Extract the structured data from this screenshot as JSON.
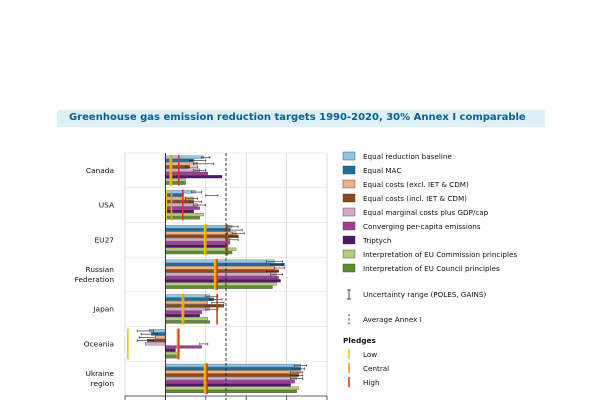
{
  "title": "Greenhouse gas emission reduction targets 1990-2020, 30% Annex I comparable",
  "colors": {
    "title_bg": "#ddeff8",
    "title_text": "#0a5f8f",
    "pledge_low": "#f2c300",
    "pledge_central": "#f29a1f",
    "pledge_high": "#d8371d"
  },
  "chart_data": {
    "type": "bar",
    "orientation": "horizontal",
    "categories": [
      "Canada",
      "USA",
      "EU27",
      "Russian Federation",
      "Japan",
      "Oceania",
      "Ukraine region"
    ],
    "category_labels": [
      [
        "Canada"
      ],
      [
        "USA"
      ],
      [
        "EU27"
      ],
      [
        "Russian",
        "Federation"
      ],
      [
        "Japan"
      ],
      [
        "Oceania"
      ],
      [
        "Ukraine",
        "region"
      ]
    ],
    "xlim": [
      -20,
      80
    ],
    "grid": true,
    "average_annex1": 30,
    "series": [
      {
        "name": "Equal reduction baseline",
        "color": "#8ec6e6",
        "values": [
          19,
          15,
          33,
          54,
          22,
          -8,
          67
        ]
      },
      {
        "name": "Equal MAC",
        "color": "#1b6f9e",
        "values": [
          14,
          9,
          32,
          59,
          24,
          -7,
          67
        ]
      },
      {
        "name": "Equal costs (excl. IET & CDM)",
        "color": "#f0b089",
        "values": [
          16,
          14,
          35,
          54,
          21,
          -5,
          67
        ]
      },
      {
        "name": "Equal costs (incl. IET & CDM)",
        "color": "#8a4b18",
        "values": [
          12,
          14,
          36,
          56,
          29,
          -9,
          66
        ]
      },
      {
        "name": "Equal marginal costs plus GDP/cap",
        "color": "#d4aacc",
        "values": [
          17,
          16,
          32,
          55,
          22,
          -10,
          65
        ]
      },
      {
        "name": "Converging per-capita emissions",
        "color": "#a03e96",
        "values": [
          21,
          17,
          32,
          56,
          18,
          18,
          64
        ]
      },
      {
        "name": "Triptych",
        "color": "#4f1a6b",
        "values": [
          28,
          14,
          31,
          57,
          17,
          5,
          62
        ]
      },
      {
        "name": "Interpretation of EU Commission principles",
        "color": "#b5cc7a",
        "values": [
          10,
          19,
          35,
          55,
          21,
          6,
          66
        ]
      },
      {
        "name": "Interpretation of EU Council principles",
        "color": "#5e8f2e",
        "values": [
          10,
          17,
          33,
          53,
          22,
          6,
          65
        ]
      }
    ],
    "uncertainty_ranges": [
      [
        [
          18,
          22
        ],
        [
          12,
          20
        ],
        [
          14,
          24
        ],
        [
          10,
          16
        ],
        [
          14,
          20
        ]
      ],
      [
        [
          13,
          18
        ],
        [
          20,
          26
        ],
        [
          10,
          16
        ],
        [
          12,
          18
        ],
        [
          14,
          20
        ]
      ],
      [
        [
          30,
          36
        ],
        [
          32,
          38
        ],
        [
          33,
          39
        ],
        [
          30,
          36
        ],
        [
          30,
          36
        ]
      ],
      [
        [
          50,
          58
        ],
        [
          52,
          58
        ],
        [
          54,
          59
        ],
        [
          50,
          56
        ],
        [
          52,
          58
        ]
      ],
      [
        [
          20,
          26
        ],
        [
          22,
          28
        ],
        [
          23,
          29
        ],
        [
          20,
          26
        ],
        [
          20,
          26
        ]
      ],
      [
        [
          -14,
          -6
        ],
        [
          -12,
          -4
        ],
        [
          -13,
          -5
        ],
        [
          -14,
          -6
        ],
        [
          17,
          21
        ]
      ],
      [
        [
          64,
          70
        ],
        [
          63,
          69
        ],
        [
          62,
          68
        ],
        [
          62,
          68
        ],
        [
          62,
          68
        ]
      ]
    ],
    "pledges": [
      {
        "low": 3,
        "central": 3,
        "high": 6
      },
      {
        "low": 1,
        "central": 3,
        "high": 8
      },
      {
        "low": 20,
        "central": 20,
        "high": 30
      },
      {
        "low": 25,
        "central": 25,
        "high": 25
      },
      {
        "low": 9,
        "central": 9,
        "high": 25
      },
      {
        "low": -18,
        "central": 6,
        "high": 6
      },
      {
        "low": 20,
        "central": 20,
        "high": 20
      }
    ]
  },
  "legend": {
    "uncertainty_label": "Uncertainty range (POLES, GAINS)",
    "average_label": "Average Annex I",
    "pledges_heading": "Pledges",
    "pledge_low": "Low",
    "pledge_central": "Central",
    "pledge_high": "High"
  }
}
